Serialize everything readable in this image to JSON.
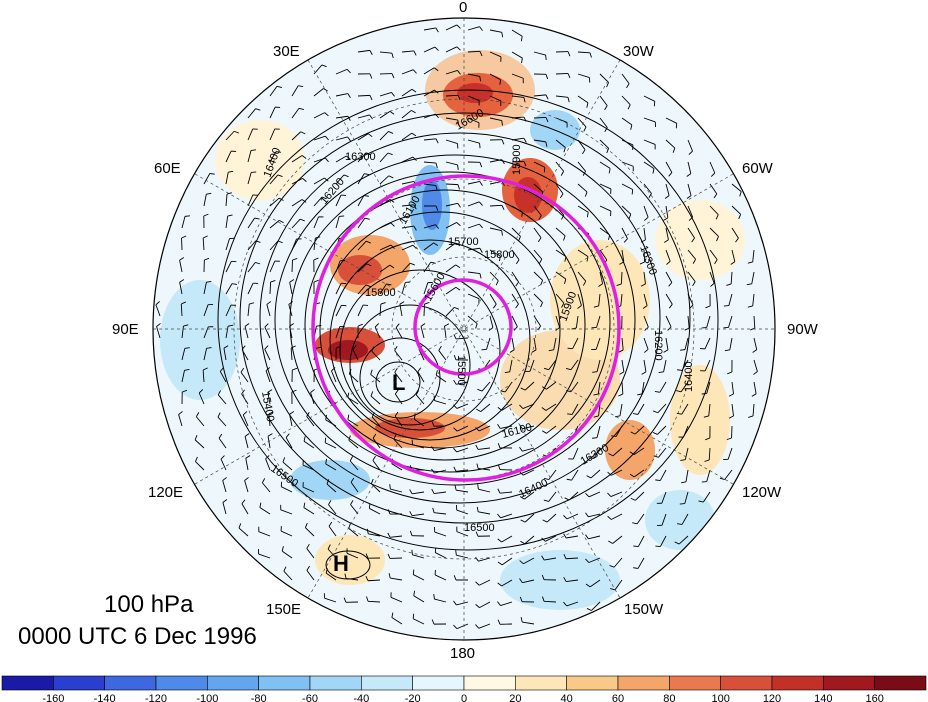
{
  "map": {
    "projection": "north-polar-stereographic",
    "variable": "geopotential height contours with shaded anomaly",
    "longitude_labels": [
      "0",
      "30W",
      "60W",
      "90W",
      "120W",
      "150W",
      "180",
      "150E",
      "120E",
      "90E",
      "60E",
      "30E"
    ],
    "contour_labels": [
      "16400",
      "16300",
      "16200",
      "16100",
      "15900",
      "15800",
      "15700",
      "15600",
      "15500",
      "15400",
      "16500",
      "16600",
      "15800",
      "16300",
      "16400",
      "16500",
      "16100",
      "16300",
      "16200",
      "16400",
      "15900"
    ],
    "pressure_systems": [
      {
        "type": "low",
        "label": "L"
      },
      {
        "type": "high",
        "label": "H"
      }
    ],
    "overlay_color": "#e020e0",
    "contour_color": "#000000"
  },
  "caption": {
    "level": "100 hPa",
    "time": "0000 UTC 6 Dec 1996"
  },
  "colorbar": {
    "labels": [
      "-160",
      "-140",
      "-120",
      "-100",
      "-80",
      "-60",
      "-40",
      "-20",
      "0",
      "20",
      "40",
      "60",
      "80",
      "100",
      "120",
      "140",
      "160"
    ],
    "colors": [
      "#1a1aa8",
      "#2a3fd0",
      "#3e68e0",
      "#4f8ae8",
      "#64a6ee",
      "#80c0f2",
      "#a2d6f6",
      "#c6e9fa",
      "#e6f6fd",
      "#fff9e4",
      "#fde6b8",
      "#f9c98a",
      "#f3a56a",
      "#e97a50",
      "#d9503a",
      "#c23028",
      "#a01820",
      "#7a0c18"
    ]
  }
}
